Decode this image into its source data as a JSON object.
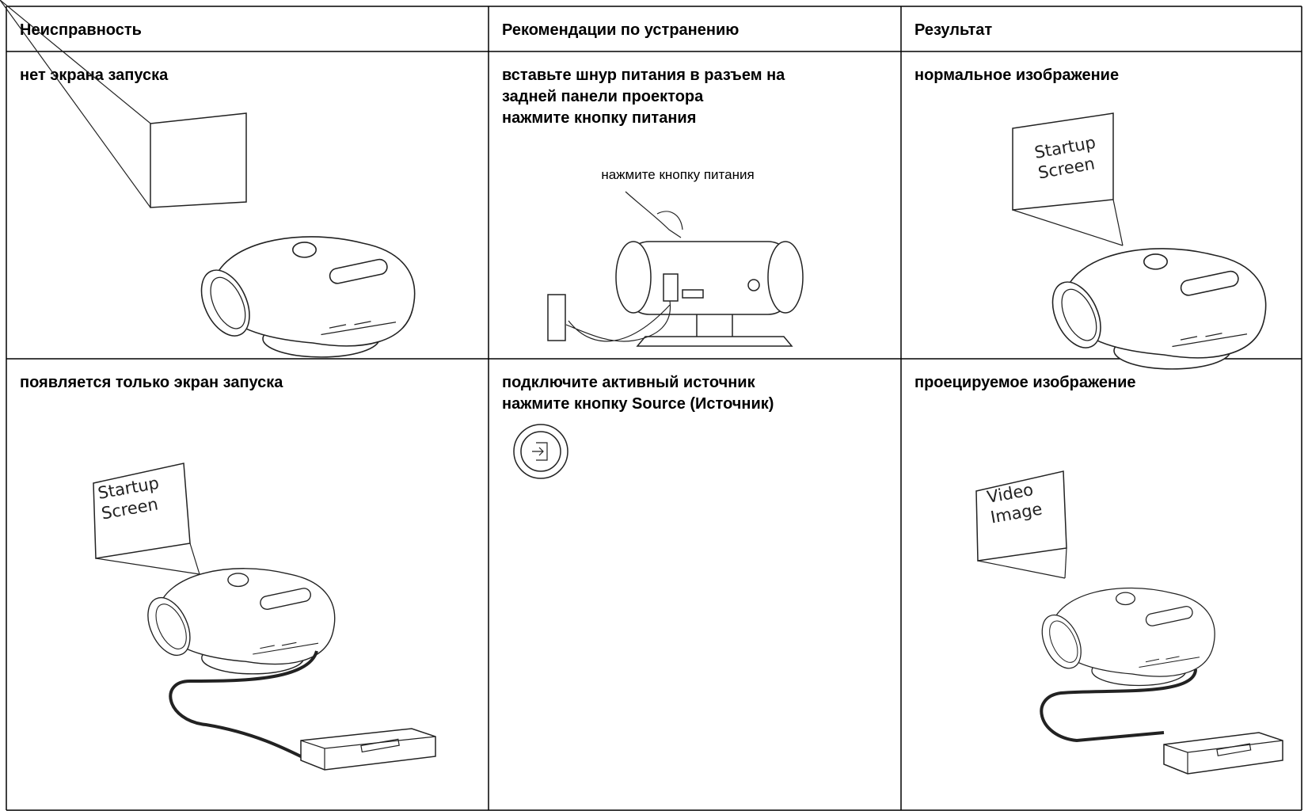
{
  "table": {
    "headers": [
      "Неисправность",
      "Рекомендации по устранению",
      "Результат"
    ],
    "rows": [
      [
        {
          "lines": [
            "нет экрана запуска"
          ]
        },
        {
          "lines": [
            "вставьте шнур питания в разъем на",
            "задней панели проектора",
            "нажмите кнопку питания"
          ],
          "caption": "нажмите кнопку питания"
        },
        {
          "lines": [
            "нормальное изображение"
          ],
          "screen_text": [
            "Startup",
            "Screen"
          ]
        }
      ],
      [
        {
          "lines": [
            "появляется только экран запуска"
          ],
          "screen_text": [
            "Startup",
            "Screen"
          ]
        },
        {
          "lines": [
            "подключите активный источник",
            "нажмите кнопку Source (Источник)"
          ]
        },
        {
          "lines": [
            "проецируемое изображение"
          ],
          "screen_text": [
            "Video",
            "Image"
          ]
        }
      ]
    ]
  }
}
